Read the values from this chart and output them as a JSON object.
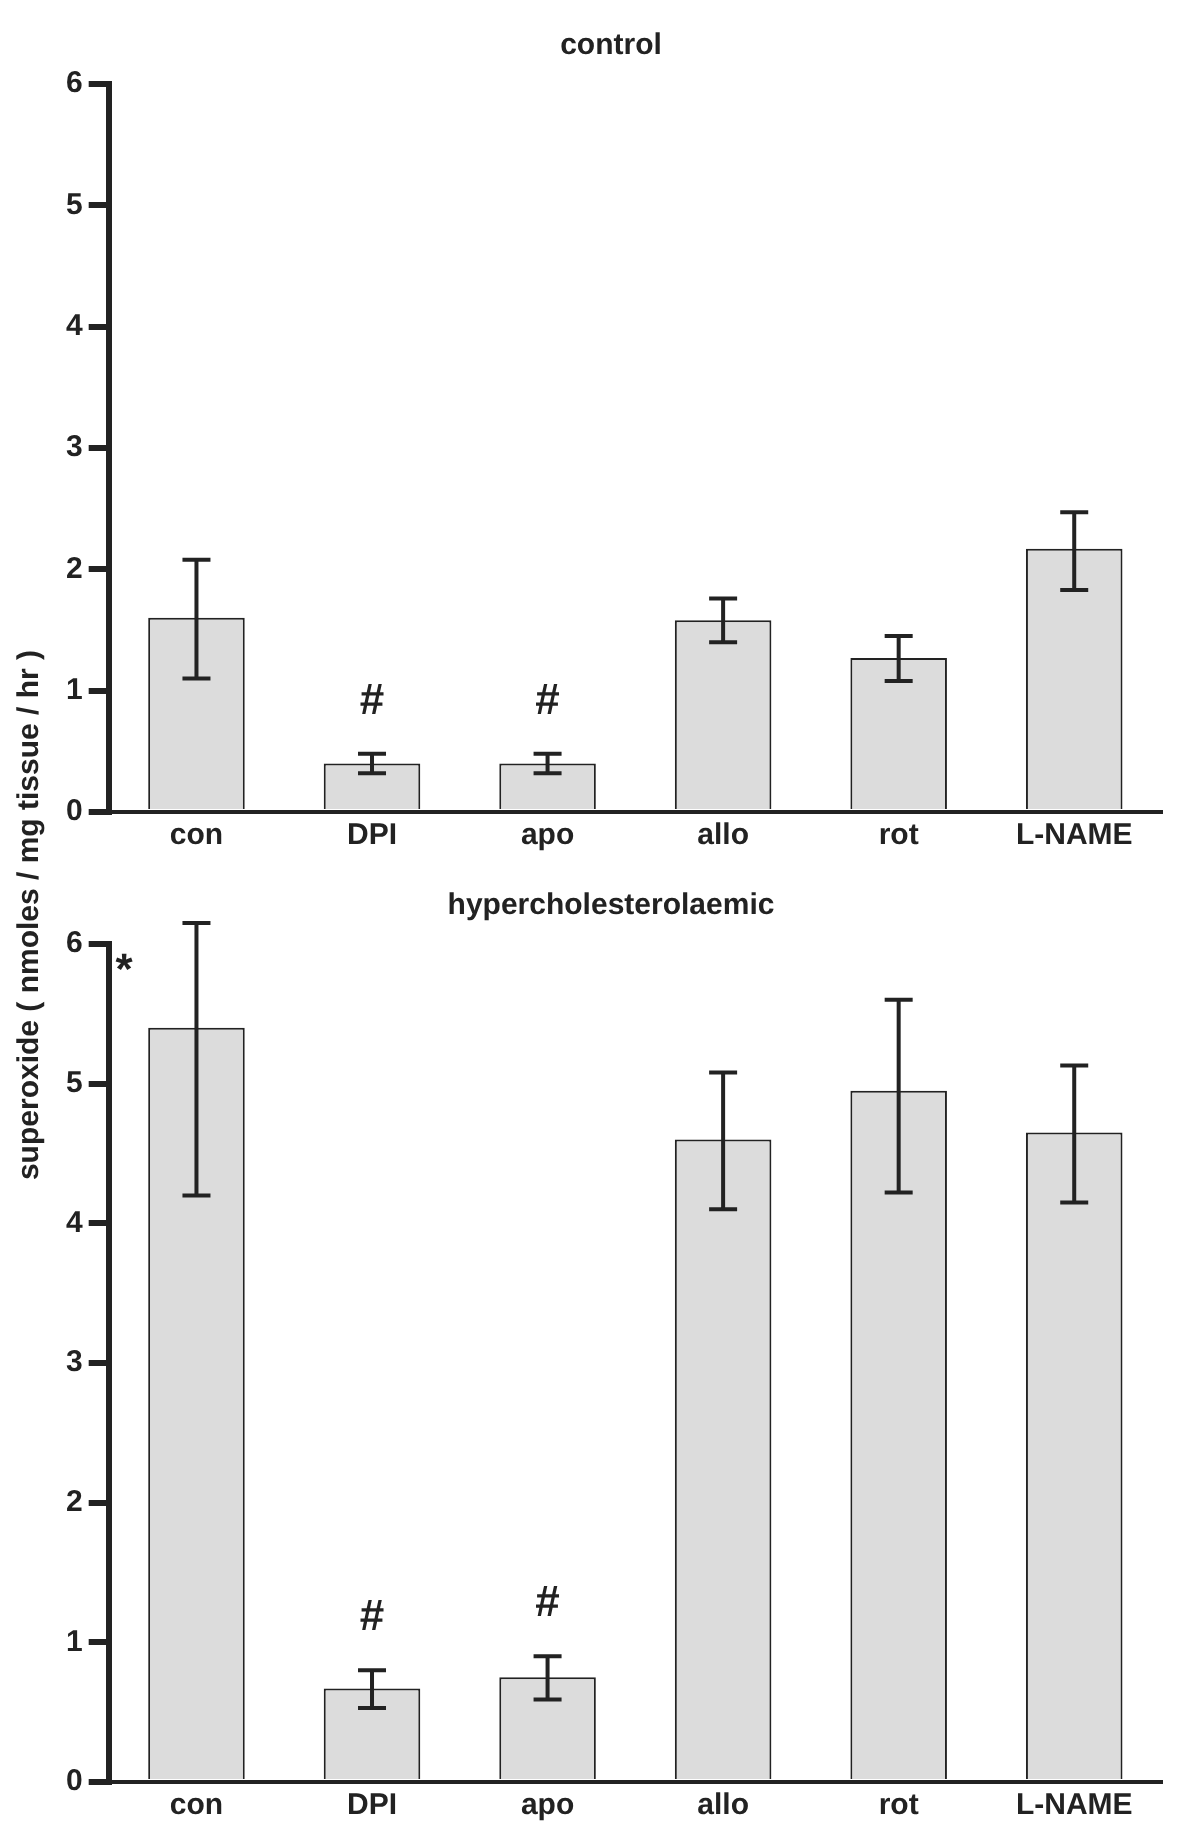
{
  "chart_data": [
    {
      "type": "bar",
      "title": "control",
      "ylabel": "superoxide ( nmoles / mg tissue / hr )",
      "categories": [
        "con",
        "DPI",
        "apo",
        "allo",
        "rot",
        "L-NAME"
      ],
      "values": [
        1.6,
        0.4,
        0.4,
        1.58,
        1.27,
        2.17
      ],
      "errors": [
        [
          1.1,
          2.08
        ],
        [
          0.32,
          0.48
        ],
        [
          0.32,
          0.48
        ],
        [
          1.4,
          1.76
        ],
        [
          1.08,
          1.45
        ],
        [
          1.83,
          2.47
        ]
      ],
      "color": "#dcdcdc",
      "ylim": [
        0,
        6
      ],
      "yticks": [
        0,
        1,
        2,
        3,
        4,
        5,
        6
      ],
      "grid": false,
      "legend": false,
      "annotations": [
        {
          "text": "#",
          "x": "DPI",
          "y": 0.48
        },
        {
          "text": "#",
          "x": "apo",
          "y": 0.48
        }
      ]
    },
    {
      "type": "bar",
      "title": "hypercholesterolaemic",
      "categories": [
        "con",
        "DPI",
        "apo",
        "allo",
        "rot",
        "L-NAME"
      ],
      "values": [
        5.4,
        0.67,
        0.75,
        4.6,
        4.95,
        4.65
      ],
      "errors": [
        [
          4.2,
          6.15
        ],
        [
          0.53,
          0.8
        ],
        [
          0.59,
          0.9
        ],
        [
          4.1,
          5.08
        ],
        [
          4.22,
          5.6
        ],
        [
          4.15,
          5.13
        ]
      ],
      "color": "#dcdcdc",
      "ylim": [
        0,
        6
      ],
      "yticks": [
        0,
        1,
        2,
        3,
        4,
        5,
        6
      ],
      "grid": false,
      "legend": false,
      "annotations": [
        {
          "text": "*",
          "x": "con",
          "y": 5.8
        },
        {
          "text": "#",
          "x": "DPI",
          "y": 0.8
        },
        {
          "text": "#",
          "x": "apo",
          "y": 0.9
        }
      ]
    }
  ]
}
